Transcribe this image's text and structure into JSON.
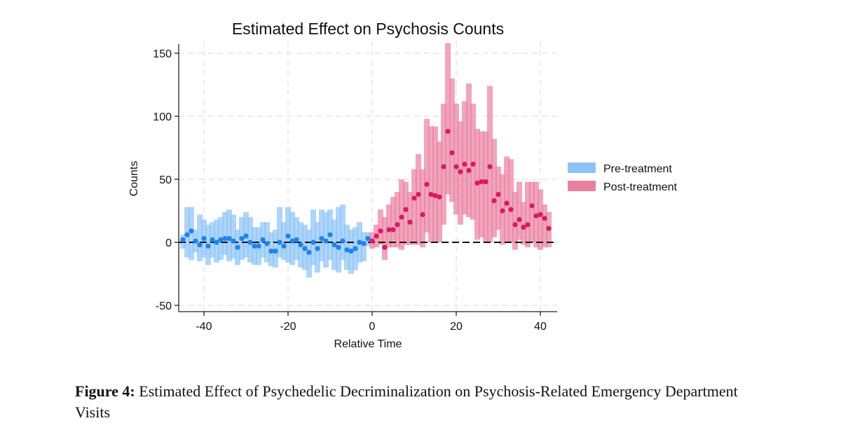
{
  "chart_data": {
    "type": "scatter",
    "title": "Estimated Effect on Psychosis Counts",
    "xlabel": "Relative Time",
    "ylabel": "Counts",
    "xlim": [
      -46,
      44
    ],
    "ylim": [
      -55,
      160
    ],
    "xticks": [
      -40,
      -20,
      0,
      20,
      40
    ],
    "yticks": [
      -50,
      0,
      50,
      100,
      150
    ],
    "grid": true,
    "reference_line_y": 0,
    "legend_position": "right",
    "series": [
      {
        "name": "Pre-treatment",
        "color": "#1f83e8",
        "band_color": "#8cc3f6",
        "x": [
          -45,
          -44,
          -43,
          -42,
          -41,
          -40,
          -39,
          -38,
          -37,
          -36,
          -35,
          -34,
          -33,
          -32,
          -31,
          -30,
          -29,
          -28,
          -27,
          -26,
          -25,
          -24,
          -23,
          -22,
          -21,
          -20,
          -19,
          -18,
          -17,
          -16,
          -15,
          -14,
          -13,
          -12,
          -11,
          -10,
          -9,
          -8,
          -7,
          -6,
          -5,
          -4,
          -3,
          -2,
          -1
        ],
        "y": [
          2,
          6,
          9,
          1,
          -2,
          3,
          -3,
          2,
          0,
          2,
          3,
          3,
          1,
          -4,
          3,
          5,
          0,
          -3,
          -3,
          2,
          -1,
          -7,
          -7,
          0,
          -3,
          5,
          1,
          2,
          -2,
          -5,
          -8,
          0,
          -5,
          3,
          1,
          6,
          -2,
          -4,
          1,
          -6,
          -7,
          -5,
          0,
          -1,
          3
        ],
        "lower": [
          -5,
          -12,
          -14,
          -8,
          -15,
          -12,
          -18,
          -12,
          -16,
          -14,
          -10,
          -15,
          -13,
          -18,
          -14,
          -12,
          -16,
          -18,
          -18,
          -12,
          -16,
          -19,
          -20,
          -12,
          -14,
          -16,
          -18,
          -14,
          -20,
          -22,
          -28,
          -18,
          -24,
          -15,
          -20,
          -14,
          -22,
          -24,
          -14,
          -22,
          -25,
          -22,
          -16,
          -15,
          -3
        ],
        "upper": [
          6,
          28,
          28,
          10,
          22,
          18,
          14,
          16,
          18,
          20,
          24,
          26,
          22,
          10,
          20,
          24,
          20,
          12,
          12,
          16,
          16,
          8,
          10,
          28,
          16,
          28,
          24,
          20,
          16,
          14,
          10,
          26,
          16,
          26,
          24,
          26,
          18,
          28,
          30,
          14,
          10,
          12,
          16,
          8,
          8
        ]
      },
      {
        "name": "Post-treatment",
        "color": "#d81b5e",
        "band_color": "#e9809f",
        "x": [
          0,
          1,
          2,
          3,
          4,
          5,
          6,
          7,
          8,
          9,
          10,
          11,
          12,
          13,
          14,
          15,
          16,
          17,
          18,
          19,
          20,
          21,
          22,
          23,
          24,
          25,
          26,
          27,
          28,
          29,
          30,
          31,
          32,
          33,
          34,
          35,
          36,
          37,
          38,
          39,
          40,
          41,
          42
        ],
        "y": [
          1,
          5,
          9,
          -4,
          10,
          10,
          14,
          20,
          26,
          16,
          35,
          38,
          22,
          46,
          38,
          37,
          36,
          60,
          88,
          71,
          60,
          56,
          62,
          57,
          62,
          47,
          48,
          48,
          60,
          33,
          38,
          25,
          31,
          26,
          14,
          18,
          12,
          14,
          29,
          21,
          22,
          19,
          11
        ],
        "lower": [
          -5,
          -4,
          -2,
          -14,
          -4,
          -4,
          -4,
          -6,
          -2,
          -2,
          -2,
          -2,
          -4,
          8,
          0,
          0,
          0,
          14,
          38,
          32,
          22,
          14,
          22,
          20,
          18,
          2,
          4,
          0,
          0,
          4,
          10,
          -2,
          0,
          0,
          -6,
          2,
          -2,
          -4,
          0,
          -4,
          -6,
          -4,
          -4
        ],
        "upper": [
          8,
          14,
          26,
          20,
          30,
          36,
          40,
          50,
          48,
          40,
          58,
          70,
          58,
          98,
          92,
          92,
          80,
          110,
          158,
          130,
          110,
          96,
          112,
          126,
          110,
          90,
          88,
          88,
          124,
          82,
          60,
          54,
          68,
          66,
          40,
          48,
          32,
          48,
          48,
          48,
          42,
          30,
          24
        ]
      }
    ]
  },
  "caption": {
    "label": "Figure 4:",
    "text": "Estimated Effect of Psychedelic Decriminalization on Psychosis-Related Emergency Department Visits"
  }
}
